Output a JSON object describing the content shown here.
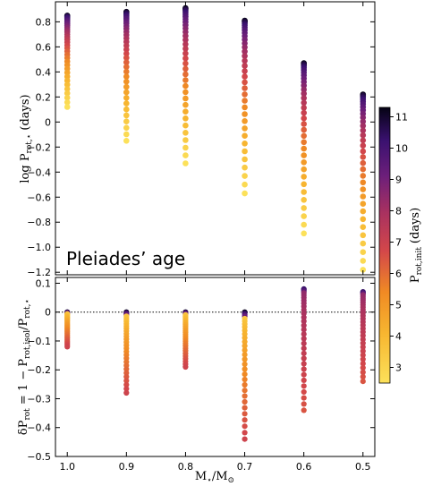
{
  "chart_data": [
    {
      "type": "scatter",
      "panel": "top",
      "ylabel": "log P",
      "ylabel_sub": "rot,⋆",
      "ylabel_unit": "(days)",
      "annotation": "Pleiades’ age",
      "xlim": [
        1.02,
        0.48
      ],
      "ylim": [
        -1.22,
        0.96
      ],
      "yticks": [
        "0.8",
        "0.6",
        "0.4",
        "0.2",
        "0",
        "−0.2",
        "−0.4",
        "−0.6",
        "−0.8",
        "−1.0",
        "−1.2"
      ],
      "ytick_values": [
        0.8,
        0.6,
        0.4,
        0.2,
        0,
        -0.2,
        -0.4,
        -0.6,
        -0.8,
        -1.0,
        -1.2
      ],
      "columns": [
        {
          "x": 1.0,
          "high": 0.85,
          "low": 0.12
        },
        {
          "x": 0.9,
          "high": 0.88,
          "low": -0.15
        },
        {
          "x": 0.8,
          "high": 0.91,
          "low": -0.33
        },
        {
          "x": 0.7,
          "high": 0.81,
          "low": -0.57
        },
        {
          "x": 0.6,
          "high": 0.47,
          "low": -0.89
        },
        {
          "x": 0.5,
          "high": 0.22,
          "low": -1.18
        }
      ]
    },
    {
      "type": "scatter",
      "panel": "bottom",
      "ylabel": "δP",
      "ylabel_rest": " = 1 − P",
      "ylabel_sub1": "rot",
      "ylabel_sub2": "rot,isol",
      "ylabel_sub3": "rot,⋆",
      "xlabel": "M",
      "xlabel_sub1": "⋆",
      "xlabel_sub2": "⊙",
      "xticks": [
        "1.0",
        "0.9",
        "0.8",
        "0.7",
        "0.6",
        "0.5"
      ],
      "xtick_values": [
        1.0,
        0.9,
        0.8,
        0.7,
        0.6,
        0.5
      ],
      "xlim": [
        1.02,
        0.48
      ],
      "ylim": [
        -0.5,
        0.12
      ],
      "yticks": [
        "0.1",
        "0",
        "−0.1",
        "−0.2",
        "−0.3",
        "−0.4",
        "−0.5"
      ],
      "ytick_values": [
        0.1,
        0,
        -0.1,
        -0.2,
        -0.3,
        -0.4,
        -0.5
      ],
      "reference_line": 0,
      "columns": [
        {
          "x": 1.0,
          "high": 0.0,
          "low": -0.12
        },
        {
          "x": 0.9,
          "high": 0.0,
          "low": -0.28
        },
        {
          "x": 0.8,
          "high": 0.0,
          "low": -0.19
        },
        {
          "x": 0.7,
          "high": 0.0,
          "low": -0.44
        },
        {
          "x": 0.6,
          "high": 0.08,
          "low": -0.34
        },
        {
          "x": 0.5,
          "high": 0.07,
          "low": -0.24
        }
      ]
    }
  ],
  "colorbar": {
    "label": "P",
    "label_sub": "rot,init",
    "label_unit": "(days)",
    "range": [
      2.5,
      11.3
    ],
    "ticks": [
      "3",
      "4",
      "5",
      "6",
      "7",
      "8",
      "9",
      "10",
      "11"
    ],
    "tick_values": [
      3,
      4,
      5,
      6,
      7,
      8,
      9,
      10,
      11
    ],
    "colormap": "inferno_r"
  },
  "colors": {
    "yellow": "#fce15a",
    "orange": "#f79a2b",
    "red": "#d3474a",
    "magenta": "#8f2a6a",
    "purple": "#4a1580",
    "black": "#050314"
  }
}
